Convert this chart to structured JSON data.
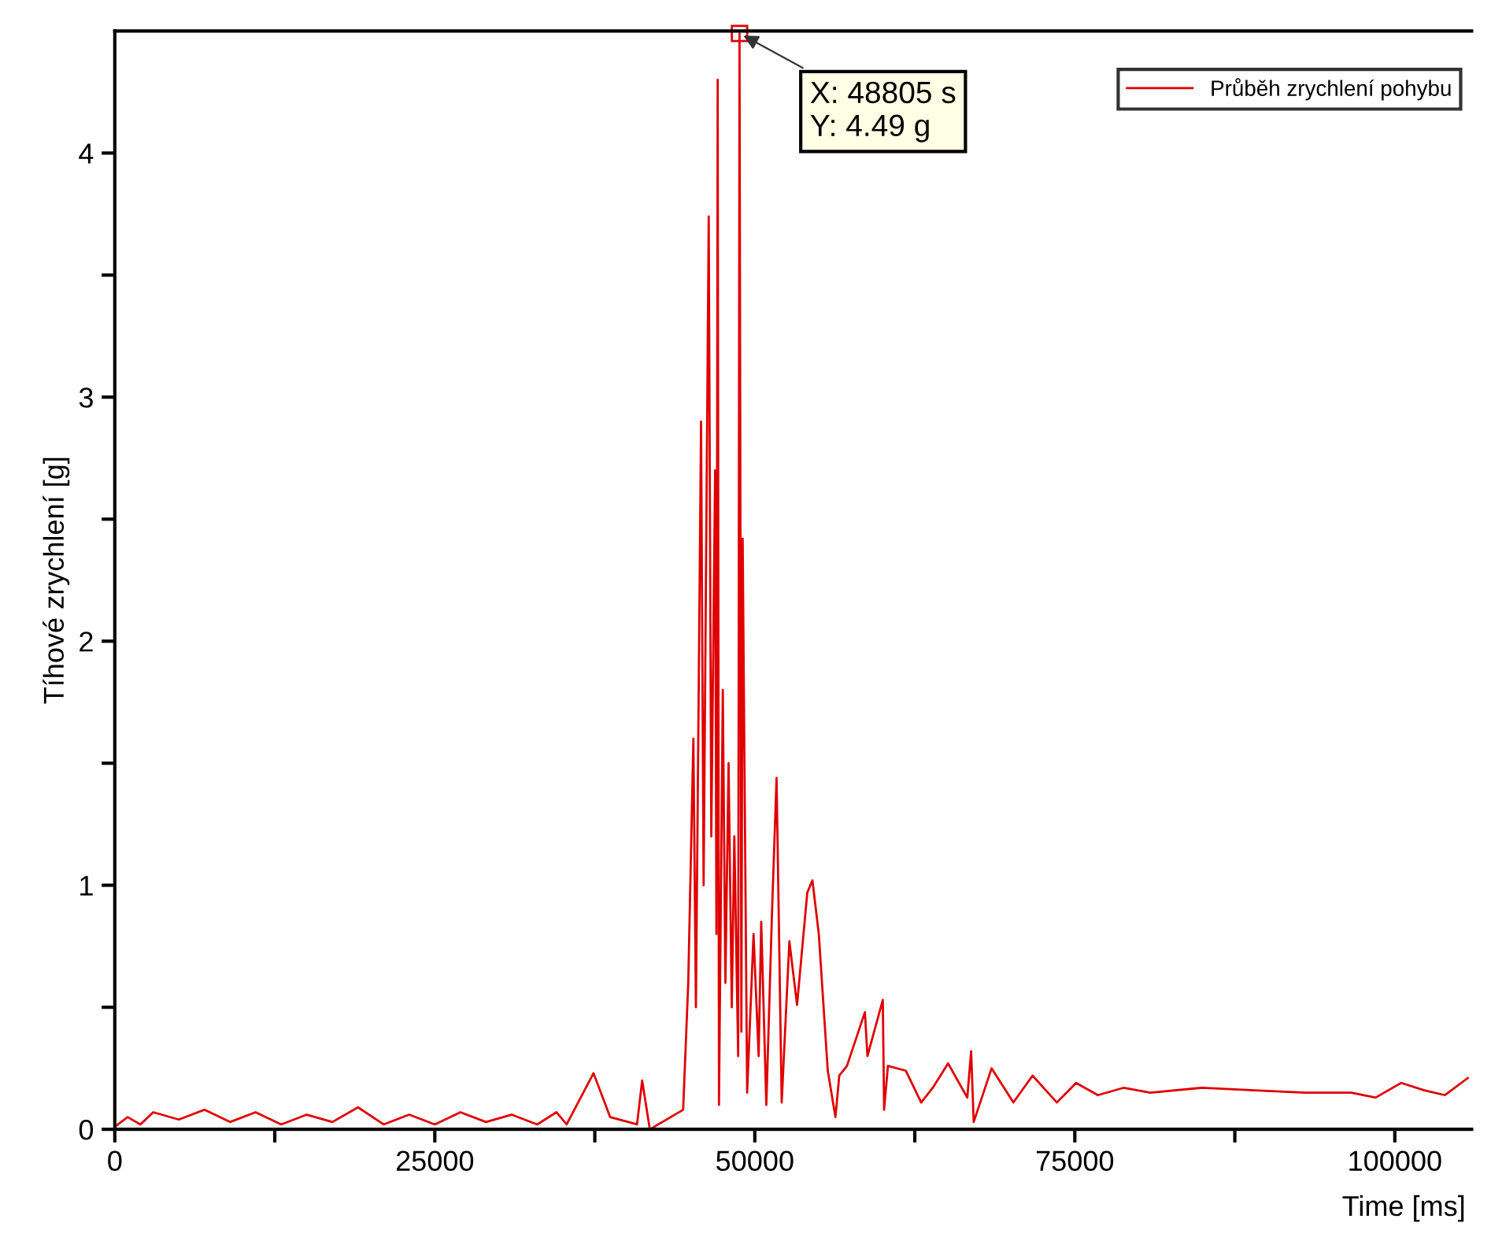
{
  "chart_data": {
    "type": "line",
    "xlabel": "Time [ms]",
    "ylabel": "Tíhové zrychlení [g]",
    "xlim": [
      0,
      106000
    ],
    "ylim": [
      0,
      4.5
    ],
    "xticks": [
      0,
      {
        "value": 12500,
        "label": null
      },
      25000,
      {
        "value": 37500,
        "label": null
      },
      50000,
      {
        "value": 62500,
        "label": null
      },
      75000,
      {
        "value": 87500,
        "label": null
      },
      100000
    ],
    "yticks": [
      0,
      {
        "value": 0.5,
        "label": null
      },
      1,
      {
        "value": 1.5,
        "label": null
      },
      2,
      {
        "value": 2.5,
        "label": null
      },
      3,
      {
        "value": 3.5,
        "label": null
      },
      4
    ],
    "grid": false,
    "legend": "top right",
    "marker": "none",
    "line_style": "solid",
    "annotations": [
      {
        "text": "X: 48805 s\nY: 4.49 g",
        "x": 48805,
        "y": 4.49
      }
    ],
    "series": [
      {
        "name": "Průběh zrychlení pohybu",
        "color": "#e00000",
        "x": [
          0,
          1000,
          2000,
          3000,
          5000,
          7000,
          9000,
          11000,
          13000,
          15000,
          17000,
          19000,
          21000,
          23000,
          25000,
          27000,
          29000,
          31000,
          33000,
          34500,
          35300,
          37400,
          38700,
          40800,
          41200,
          41800,
          44400,
          44800,
          45200,
          45400,
          45800,
          46000,
          46400,
          46600,
          46900,
          47000,
          47100,
          47200,
          47500,
          47700,
          47950,
          48200,
          48400,
          48700,
          48805,
          48950,
          49050,
          49400,
          49900,
          50300,
          50500,
          50900,
          51350,
          51700,
          52100,
          52700,
          53300,
          54100,
          54500,
          55000,
          55700,
          56300,
          56600,
          57200,
          58600,
          58800,
          60000,
          60100,
          60400,
          61800,
          63000,
          63900,
          65100,
          66600,
          66900,
          67100,
          68500,
          70200,
          71700,
          73600,
          75100,
          76800,
          78800,
          80900,
          84900,
          89000,
          93000,
          96600,
          98500,
          100500,
          102300,
          103900,
          105700
        ],
        "values": [
          0.01,
          0.05,
          0.02,
          0.07,
          0.04,
          0.08,
          0.03,
          0.07,
          0.02,
          0.06,
          0.03,
          0.09,
          0.02,
          0.06,
          0.02,
          0.07,
          0.03,
          0.06,
          0.02,
          0.07,
          0.02,
          0.23,
          0.05,
          0.02,
          0.2,
          0.0,
          0.08,
          0.6,
          1.6,
          0.5,
          2.9,
          1.0,
          3.74,
          1.2,
          2.7,
          0.8,
          4.3,
          0.1,
          1.8,
          0.6,
          1.5,
          0.5,
          1.2,
          0.3,
          4.49,
          0.4,
          2.42,
          0.15,
          0.8,
          0.3,
          0.85,
          0.1,
          0.9,
          1.44,
          0.11,
          0.77,
          0.51,
          0.97,
          1.02,
          0.8,
          0.24,
          0.05,
          0.22,
          0.26,
          0.48,
          0.3,
          0.53,
          0.08,
          0.26,
          0.24,
          0.11,
          0.17,
          0.27,
          0.13,
          0.32,
          0.03,
          0.25,
          0.11,
          0.22,
          0.11,
          0.19,
          0.14,
          0.17,
          0.15,
          0.17,
          0.16,
          0.15,
          0.15,
          0.13,
          0.19,
          0.16,
          0.14,
          0.21
        ]
      }
    ]
  }
}
